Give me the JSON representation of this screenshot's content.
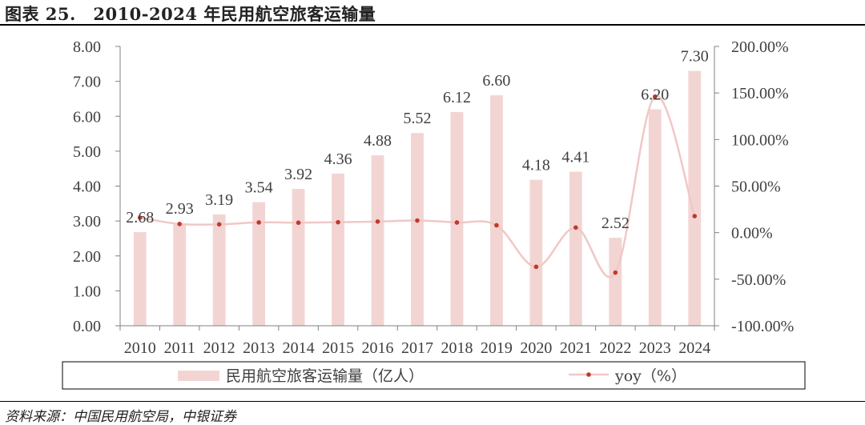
{
  "figure": {
    "title": "图表 25.　2010-2024 年民用航空旅客运输量",
    "source": "资料来源：中国民用航空局，中银证券"
  },
  "colors": {
    "bar": "#f2d5d3",
    "line": "#f0c8c5",
    "marker": "#c0392b",
    "axis": "#808080"
  },
  "chart_data": {
    "type": "bar",
    "categories": [
      "2010",
      "2011",
      "2012",
      "2013",
      "2014",
      "2015",
      "2016",
      "2017",
      "2018",
      "2019",
      "2020",
      "2021",
      "2022",
      "2023",
      "2024"
    ],
    "series": [
      {
        "name": "民用航空旅客运输量（亿人）",
        "type": "bar",
        "axis": "left",
        "values": [
          2.68,
          2.93,
          3.19,
          3.54,
          3.92,
          4.36,
          4.88,
          5.52,
          6.12,
          6.6,
          4.18,
          4.41,
          2.52,
          6.2,
          7.3
        ],
        "labels": [
          "2.68",
          "2.93",
          "3.19",
          "3.54",
          "3.92",
          "4.36",
          "4.88",
          "5.52",
          "6.12",
          "6.60",
          "4.18",
          "4.41",
          "2.52",
          "6.20",
          "7.30"
        ]
      },
      {
        "name": "yoy（%）",
        "type": "line",
        "axis": "right",
        "values": [
          16.1,
          9.3,
          8.9,
          11.0,
          10.7,
          11.2,
          11.9,
          13.0,
          10.9,
          7.9,
          -36.7,
          5.5,
          -42.9,
          146.1,
          17.7
        ]
      }
    ],
    "left_axis": {
      "ylim": [
        0,
        8
      ],
      "ticks": [
        "0.00",
        "1.00",
        "2.00",
        "3.00",
        "4.00",
        "5.00",
        "6.00",
        "7.00",
        "8.00"
      ]
    },
    "right_axis": {
      "ylim": [
        -100,
        200
      ],
      "ticks": [
        "-100.00%",
        "-50.00%",
        "0.00%",
        "50.00%",
        "100.00%",
        "150.00%",
        "200.00%"
      ]
    },
    "legend": {
      "position": "bottom",
      "items": [
        "民用航空旅客运输量（亿人）",
        "yoy（%）"
      ]
    }
  }
}
